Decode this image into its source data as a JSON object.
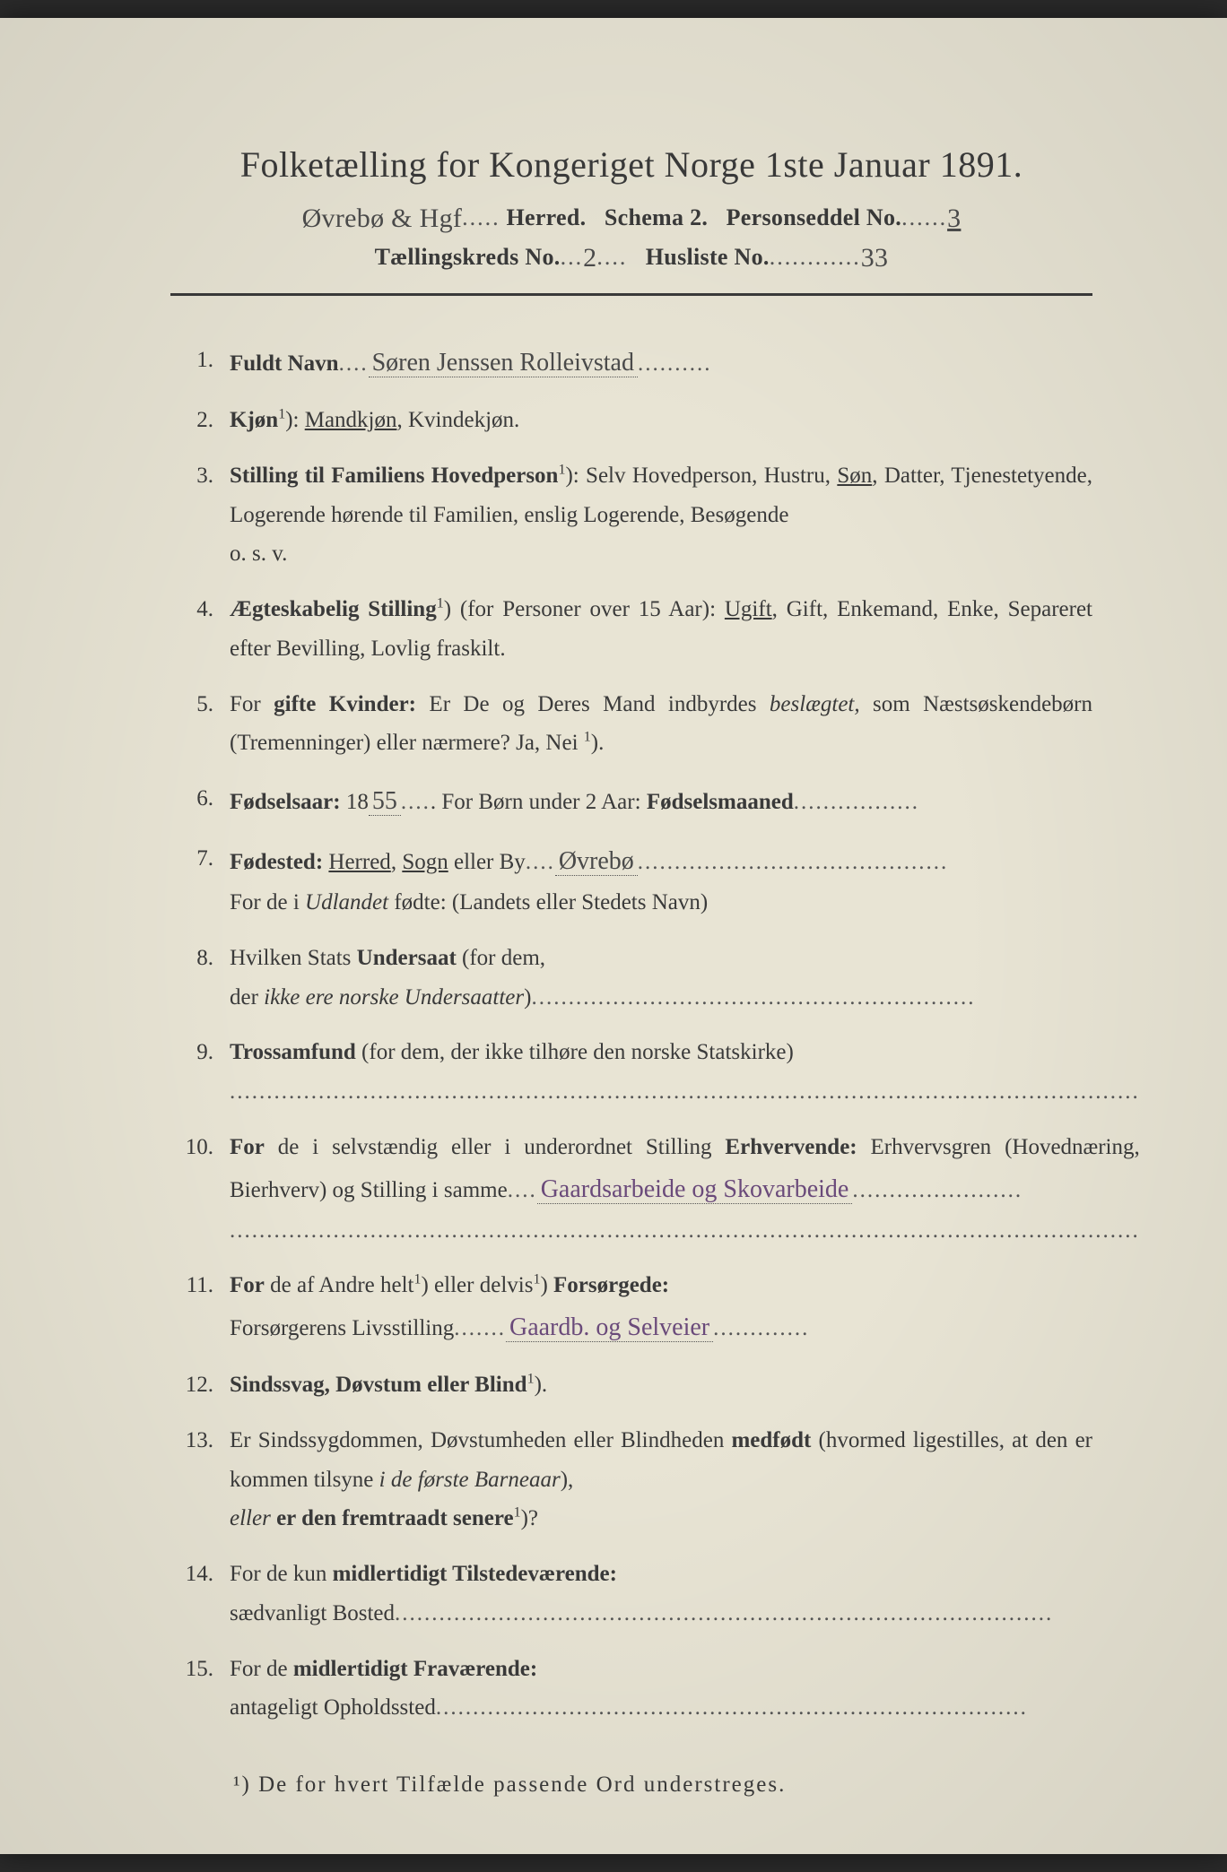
{
  "title": "Folketælling for Kongeriget Norge 1ste Januar 1891.",
  "header": {
    "herred_hw": "Øvrebø & Hgf",
    "herred_label": "Herred.",
    "schema": "Schema 2.",
    "personseddel_label": "Personseddel No.",
    "personseddel_hw": "3",
    "kreds_label": "Tællingskreds No.",
    "kreds_hw": "2",
    "husliste_label": "Husliste No.",
    "husliste_hw": "33"
  },
  "items": [
    {
      "num": "1.",
      "label": "Fuldt Navn",
      "hw": "Søren Jenssen Rolleivstad"
    },
    {
      "num": "2.",
      "label": "Kjøn",
      "sup": "1",
      "text_after": "): ",
      "options": "Mandkjøn, Kvindekjøn.",
      "underlined": "Mandkjøn"
    },
    {
      "num": "3.",
      "label": "Stilling til Familiens Hovedperson",
      "sup": "1",
      "text": "): Selv Hovedperson, Hustru, Søn, Datter, Tjenestetyende, Logerende hørende til Familien, enslig Logerende, Besøgende",
      "cont": "o. s. v.",
      "underlined": "Søn"
    },
    {
      "num": "4.",
      "label": "Ægteskabelig Stilling",
      "sup": "1",
      "text": ") (for Personer over 15 Aar): Ugift, Gift, Enkemand, Enke, Separeret efter Bevilling, Lovlig fraskilt.",
      "underlined": "Ugift"
    },
    {
      "num": "5.",
      "label_pre": "For ",
      "label": "gifte Kvinder:",
      "text": " Er De og Deres Mand indbyrdes ",
      "italic": "beslægtet,",
      "text2": " som Næstsøskendebørn (Tremenninger) eller nærmere? Ja, Nei ",
      "sup": "1",
      "text3": ")."
    },
    {
      "num": "6.",
      "label": "Fødselsaar:",
      "hw_pre": " 18",
      "hw": "55",
      "text": ". For Børn under 2 Aar: ",
      "label2": "Fødselsmaaned"
    },
    {
      "num": "7.",
      "label": "Fødested:",
      "underlined_opts": "Herred, Sogn",
      "text": " eller By",
      "hw": "Øvrebø",
      "cont_pre": "For de i ",
      "cont_italic": "Udlandet",
      "cont": " fødte: (Landets eller Stedets Navn)"
    },
    {
      "num": "8.",
      "text_pre": "Hvilken Stats ",
      "label": "Undersaat",
      "text": " (for dem,",
      "cont_pre": "der ",
      "cont_italic": "ikke ere norske Undersaatter",
      "cont": ")"
    },
    {
      "num": "9.",
      "label": "Trossamfund",
      "text": " (for dem, der ikke tilhøre den norske Statskirke)"
    },
    {
      "num": "10.",
      "label": "For",
      "text": " de i selvstændig eller i underordnet Stilling ",
      "label2": "Erhvervende:",
      "text2": " Erhvervsgren (Hovednæring, Bierhverv) og Stilling i samme",
      "hw": "Gaardsarbeide og Skovarbeide"
    },
    {
      "num": "11.",
      "label": "For",
      "text": " de af Andre helt",
      "sup": "1",
      "text2": ") eller delvis",
      "sup2": "1",
      "text3": ") ",
      "label2": "Forsørgede:",
      "cont": "Forsørgerens Livsstilling",
      "hw": "Gaardb. og Selveier"
    },
    {
      "num": "12.",
      "label": "Sindssvag, Døvstum eller Blind",
      "sup": "1",
      "text": ")."
    },
    {
      "num": "13.",
      "label_pre": "Er ",
      "text": "Sindssygdommen, Døvstumheden eller Blindheden ",
      "label": "medfødt",
      "text2": " (hvormed ligestilles, at den er kommen tilsyne ",
      "italic": "i de første Barneaar",
      "text3": "),",
      "cont_italic": "eller",
      "cont_label": " er den fremtraadt senere",
      "cont_sup": "1",
      "cont": ")?"
    },
    {
      "num": "14.",
      "label_pre": "For de kun ",
      "label": "midlertidigt Tilstedeværende:",
      "cont": "sædvanligt Bosted"
    },
    {
      "num": "15.",
      "label_pre": "For de ",
      "label": "midlertidigt Fraværende:",
      "cont": "antageligt Opholdssted"
    }
  ],
  "footnote": "¹) De for hvert Tilfælde passende Ord understreges."
}
